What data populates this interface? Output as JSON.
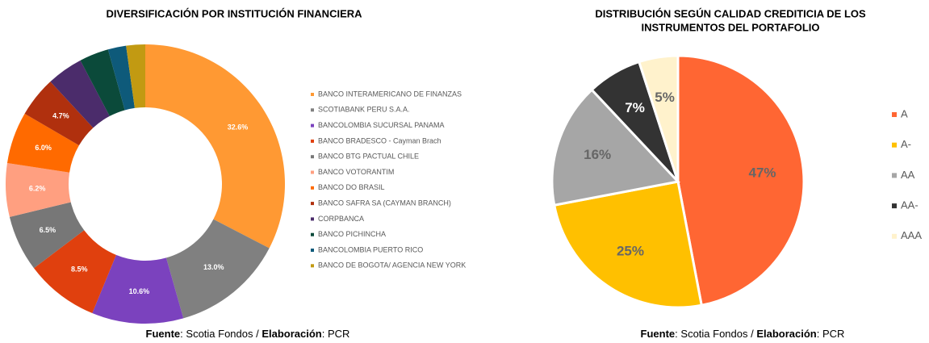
{
  "chart_data": [
    {
      "type": "donut",
      "title": [
        "DIVERSIFICACIÓN POR INSTITUCIÓN FINANCIERA"
      ],
      "categories": [
        "BANCO INTERAMERICANO DE FINANZAS",
        "SCOTIABANK PERU S.A.A.",
        "BANCOLOMBIA SUCURSAL PANAMA",
        "BANCO BRADESCO - Cayman Brach",
        "BANCO BTG PACTUAL CHILE",
        "BANCO VOTORANTIM",
        "BANCO DO BRASIL",
        "BANCO SAFRA SA (CAYMAN BRANCH)",
        "CORPBANCA",
        "BANCO PICHINCHA",
        "BANCOLOMBIA PUERTO RICO",
        "BANCO DE BOGOTA/ AGENCIA NEW YORK"
      ],
      "values": [
        32.6,
        13.0,
        10.6,
        8.5,
        6.5,
        6.2,
        6.0,
        4.7,
        4.2,
        3.4,
        2.1,
        2.2
      ],
      "value_labels": [
        "32.6%",
        "13.0%",
        "10.6%",
        "8.5%",
        "6.5%",
        "6.2%",
        "6.0%",
        "4.7%",
        null,
        null,
        null,
        null
      ],
      "colors": [
        "#FF9933",
        "#808080",
        "#7B42BE",
        "#E0400E",
        "#777777",
        "#FF9F80",
        "#FF6A00",
        "#B0300E",
        "#4B2C6B",
        "#0B4A3A",
        "#0E5A7A",
        "#C29A12"
      ],
      "legend": "right",
      "source": [
        "Fuente",
        ": Scotia Fondos / ",
        "Elaboración",
        ": PCR"
      ]
    },
    {
      "type": "pie",
      "title": [
        "DISTRIBUCIÓN SEGÚN CALIDAD CREDITICIA DE LOS",
        "INSTRUMENTOS DEL PORTAFOLIO"
      ],
      "categories": [
        "A",
        "A-",
        "AA",
        "AA-",
        "AAA"
      ],
      "values": [
        47,
        25,
        16,
        7,
        5
      ],
      "value_labels": [
        "47%",
        "25%",
        "16%",
        "7%",
        "5%"
      ],
      "colors": [
        "#FF6633",
        "#FFC000",
        "#A6A6A6",
        "#333333",
        "#FFF2CC"
      ],
      "legend": "right",
      "source": [
        "Fuente",
        ": Scotia Fondos / ",
        "Elaboración",
        ": PCR"
      ]
    }
  ]
}
